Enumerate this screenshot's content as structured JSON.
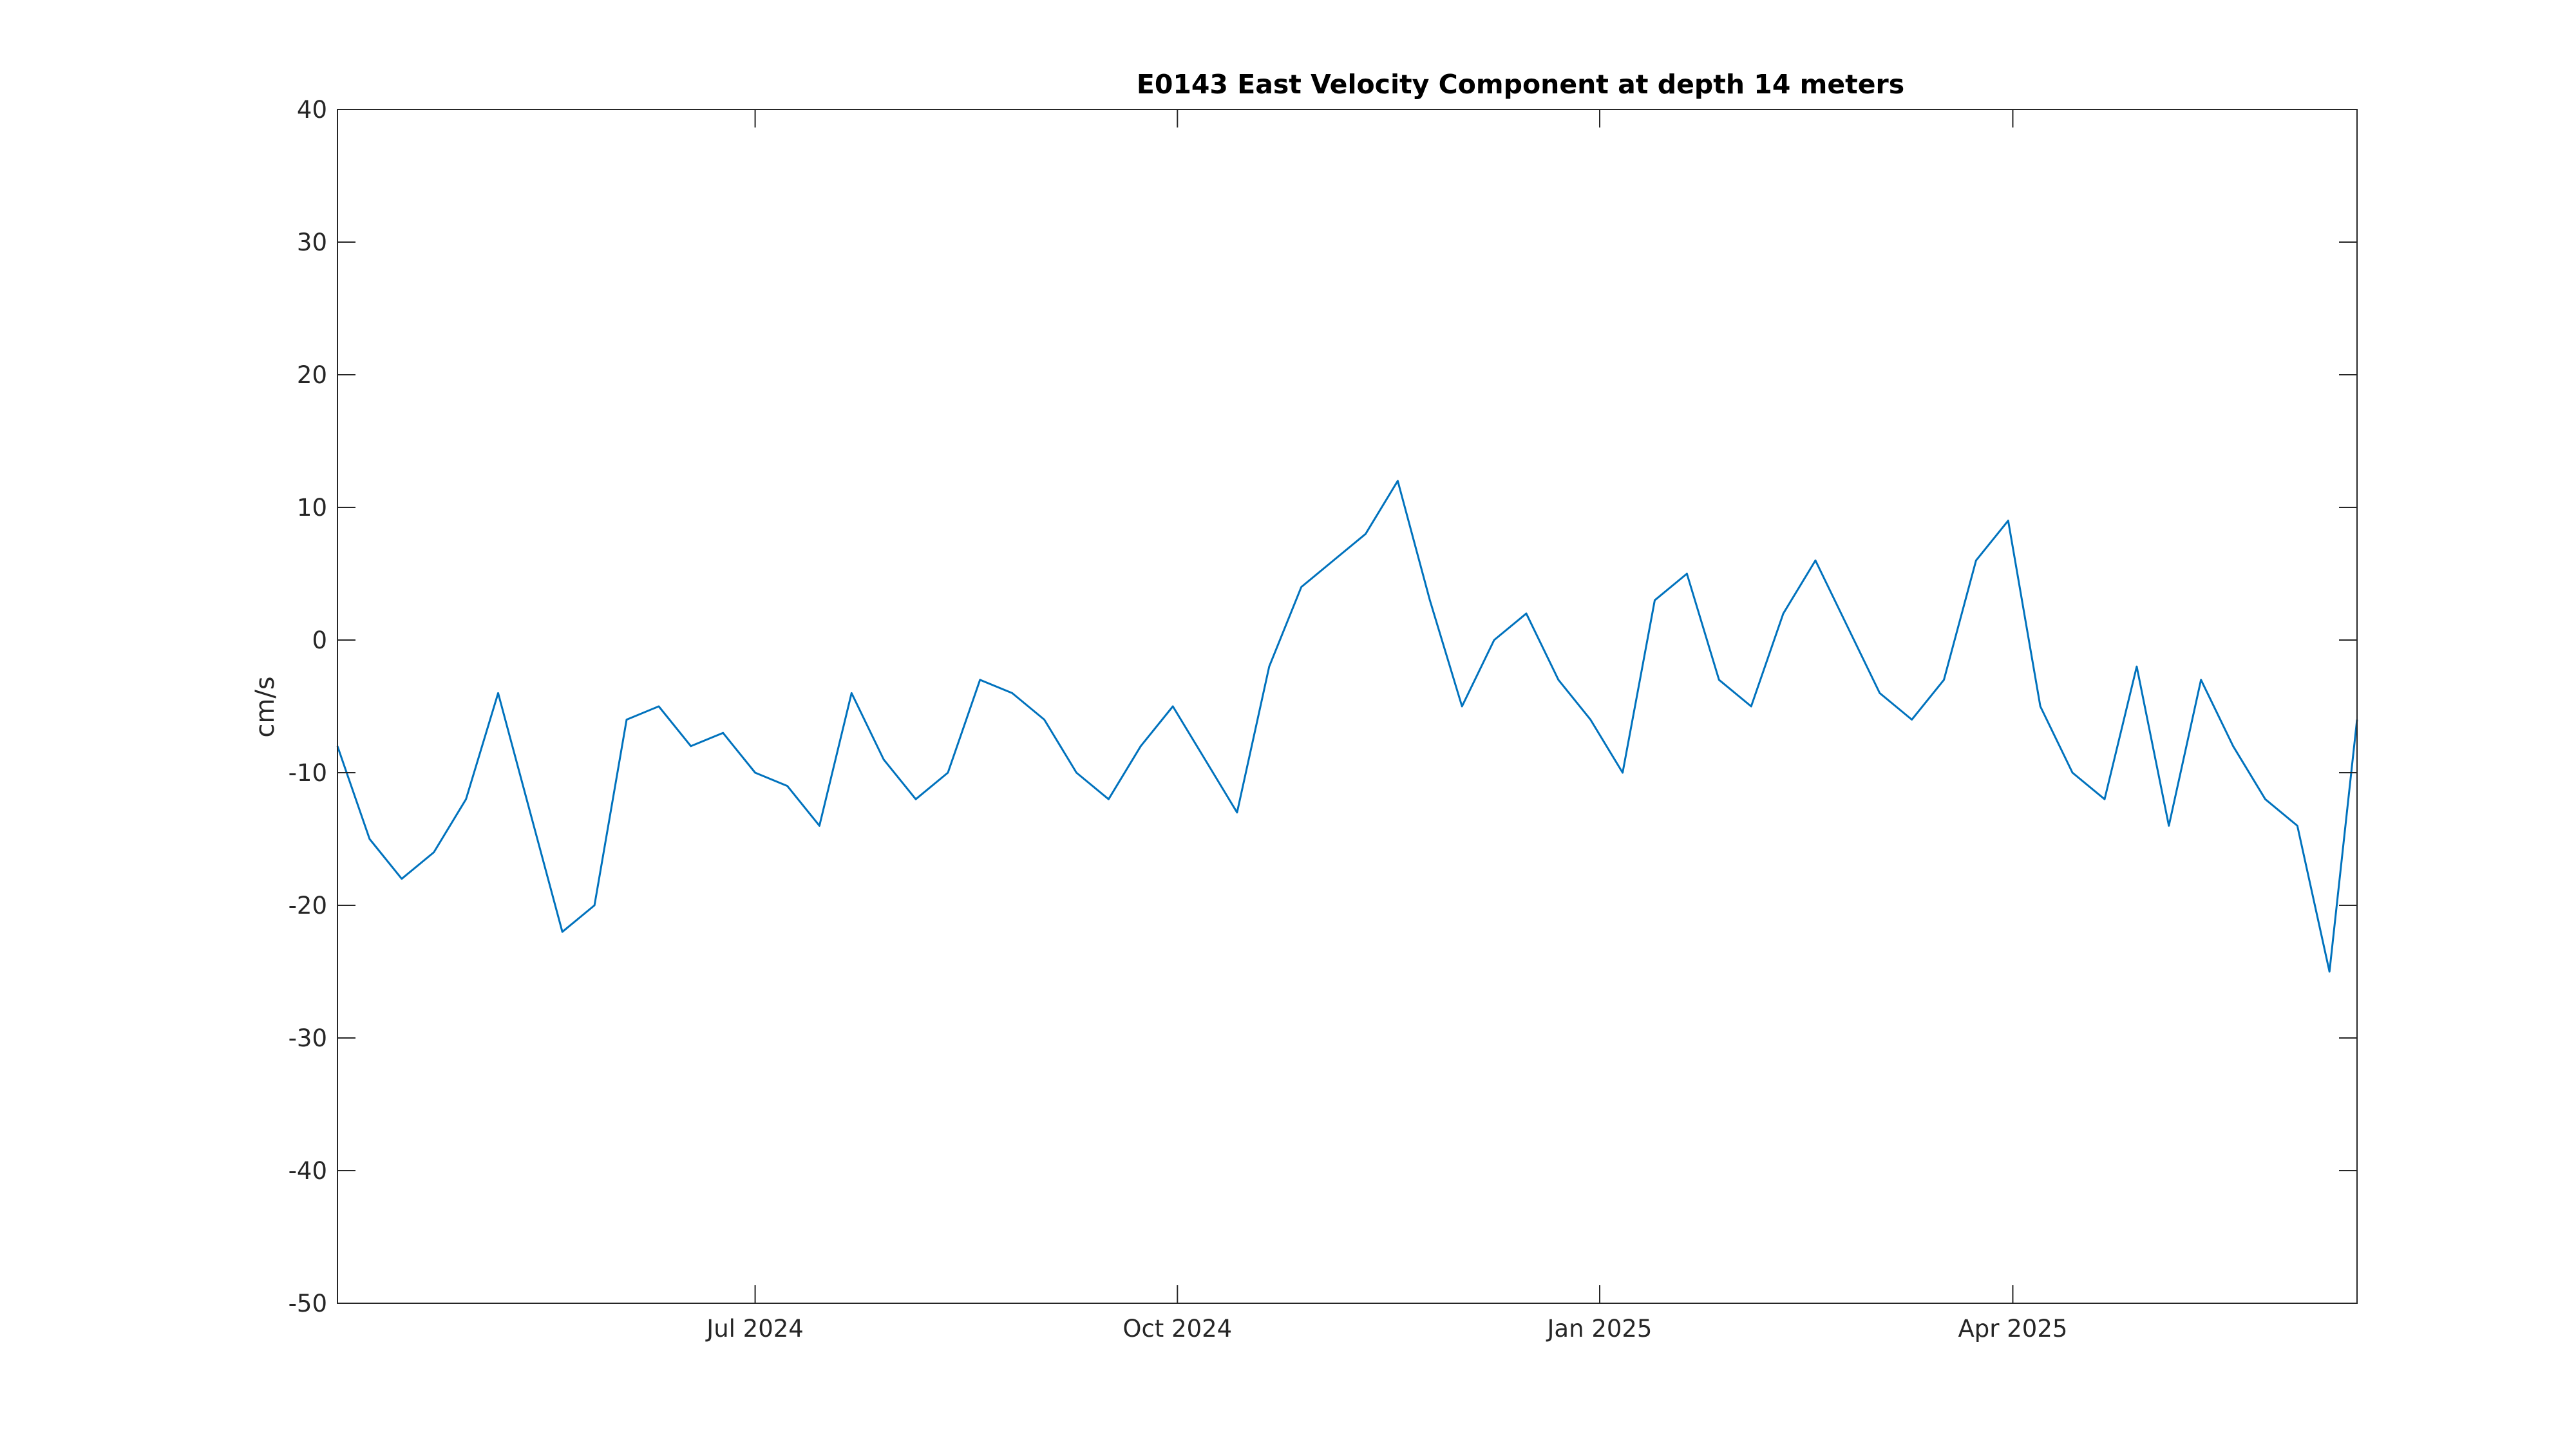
{
  "chart_data": {
    "type": "line",
    "title": "E0143 East Velocity Component at depth 14 meters",
    "xlabel": "",
    "ylabel": "cm/s",
    "xlim": [
      "2024-04-01",
      "2025-06-15"
    ],
    "ylim": [
      -50,
      40
    ],
    "x_ticks": [
      {
        "date": "2024-07-01",
        "label": "Jul 2024"
      },
      {
        "date": "2024-10-01",
        "label": "Oct 2024"
      },
      {
        "date": "2025-01-01",
        "label": "Jan 2025"
      },
      {
        "date": "2025-04-01",
        "label": "Apr 2025"
      }
    ],
    "y_ticks": [
      40,
      30,
      20,
      10,
      0,
      -10,
      -20,
      -30,
      -40,
      -50
    ],
    "grid": false,
    "series_color": "#0072BD",
    "series": [
      {
        "name": "",
        "x": [
          "2024-04-01",
          "2024-04-08",
          "2024-04-15",
          "2024-04-22",
          "2024-04-29",
          "2024-05-06",
          "2024-05-13",
          "2024-05-20",
          "2024-05-27",
          "2024-06-03",
          "2024-06-10",
          "2024-06-17",
          "2024-06-24",
          "2024-07-01",
          "2024-07-08",
          "2024-07-15",
          "2024-07-22",
          "2024-07-29",
          "2024-08-05",
          "2024-08-12",
          "2024-08-19",
          "2024-08-26",
          "2024-09-02",
          "2024-09-09",
          "2024-09-16",
          "2024-09-23",
          "2024-09-30",
          "2024-10-07",
          "2024-10-14",
          "2024-10-21",
          "2024-10-28",
          "2024-11-04",
          "2024-11-11",
          "2024-11-18",
          "2024-11-25",
          "2024-12-02",
          "2024-12-09",
          "2024-12-16",
          "2024-12-23",
          "2024-12-30",
          "2025-01-06",
          "2025-01-13",
          "2025-01-20",
          "2025-01-27",
          "2025-02-03",
          "2025-02-10",
          "2025-02-17",
          "2025-02-24",
          "2025-03-03",
          "2025-03-10",
          "2025-03-17",
          "2025-03-24",
          "2025-03-31",
          "2025-04-07",
          "2025-04-14",
          "2025-04-21",
          "2025-04-28",
          "2025-05-05",
          "2025-05-12",
          "2025-05-19",
          "2025-05-26",
          "2025-06-02",
          "2025-06-09",
          "2025-06-15"
        ],
        "values": [
          -8,
          -15,
          -18,
          -16,
          -12,
          -4,
          -13,
          -22,
          -20,
          -6,
          -5,
          -8,
          -7,
          -10,
          -11,
          -14,
          -4,
          -9,
          -12,
          -10,
          -3,
          -4,
          -6,
          -10,
          -12,
          -8,
          -5,
          -9,
          -13,
          -2,
          4,
          6,
          8,
          12,
          3,
          -5,
          0,
          2,
          -3,
          -6,
          -10,
          3,
          5,
          -3,
          -5,
          2,
          6,
          1,
          -4,
          -6,
          -3,
          6,
          9,
          -5,
          -10,
          -12,
          -2,
          -14,
          -3,
          -8,
          -12,
          -14,
          -25,
          -6
        ]
      }
    ]
  }
}
